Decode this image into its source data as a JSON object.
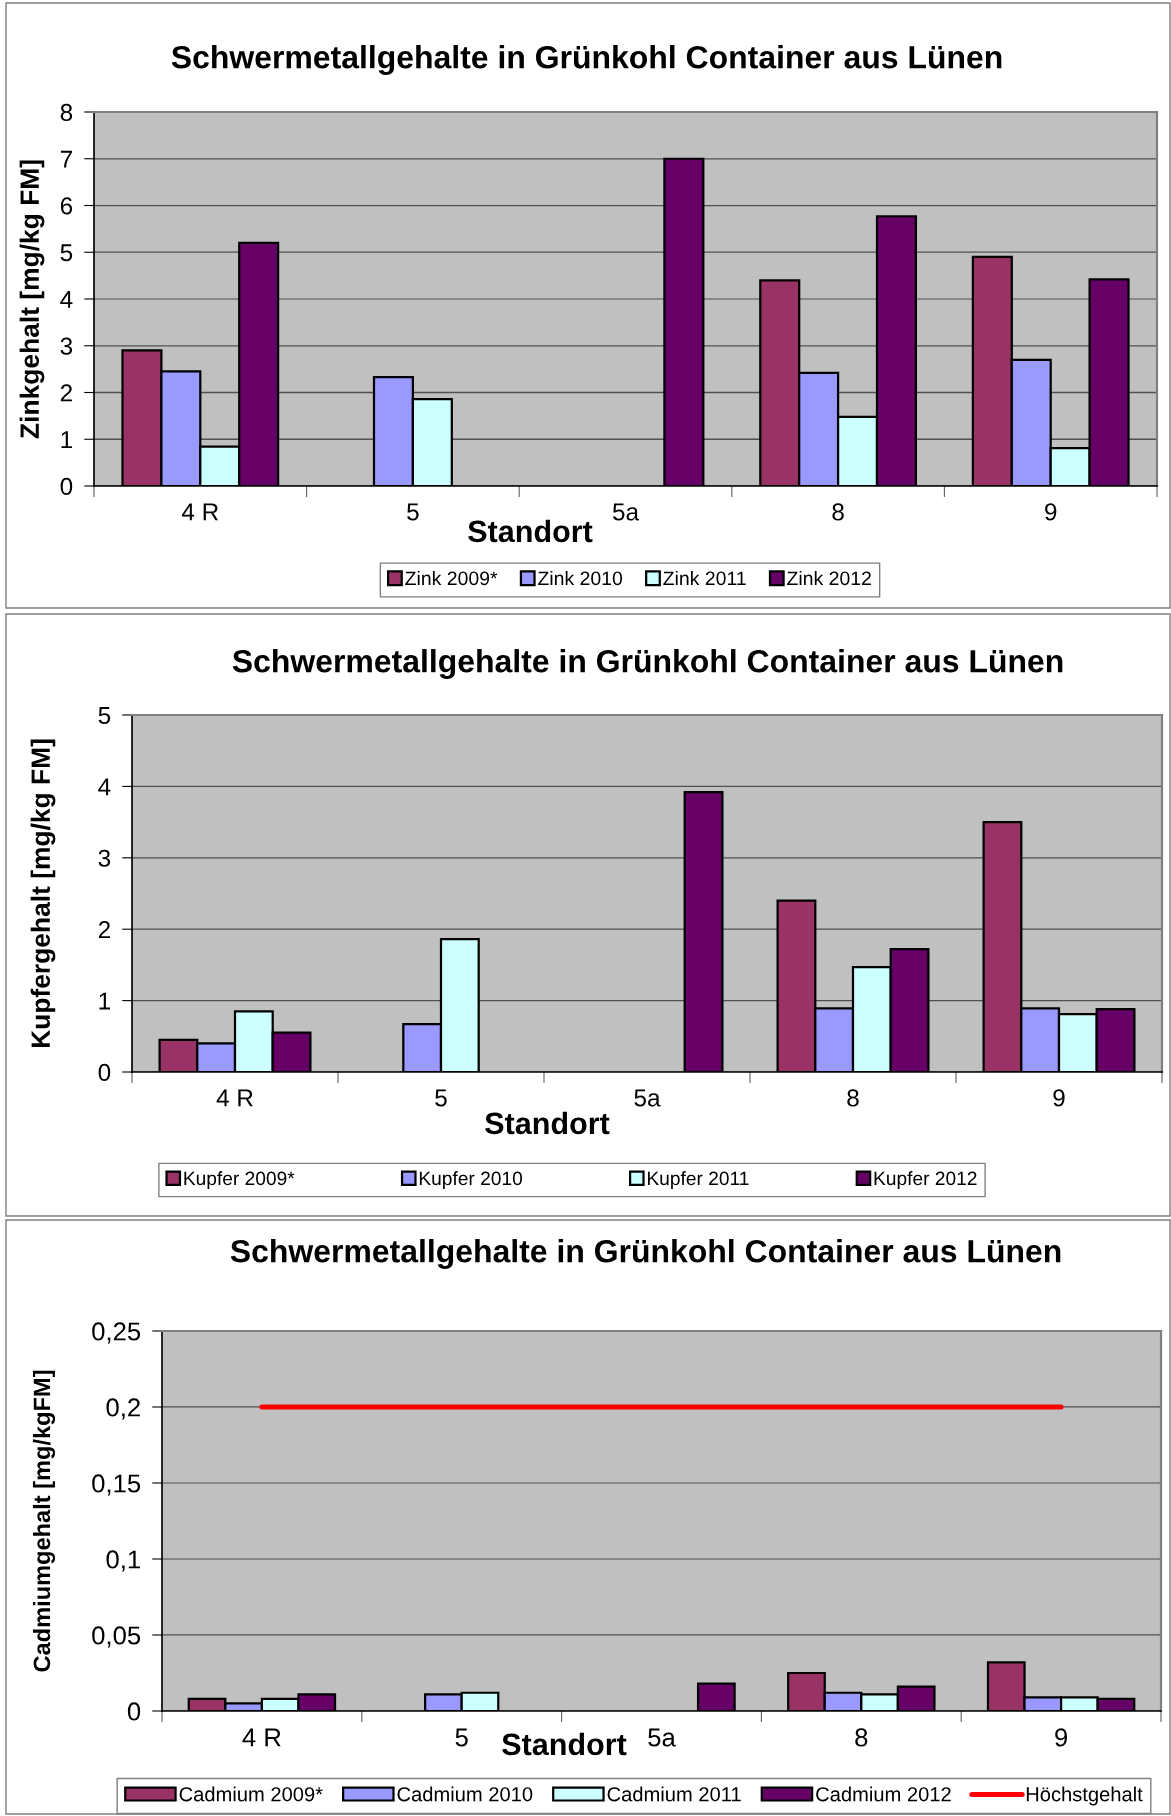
{
  "chart_data": [
    {
      "type": "bar",
      "title": "Schwermetallgehalte in Grünkohl Container aus Lünen",
      "xlabel": "Standort",
      "ylabel": "Zinkgehalt [mg/kg FM]",
      "categories": [
        "4 R",
        "5",
        "5a",
        "8",
        "9"
      ],
      "series": [
        {
          "name": "Zink 2009*",
          "color": "#993366",
          "values": [
            2.9,
            null,
            null,
            4.4,
            4.9
          ]
        },
        {
          "name": "Zink 2010",
          "color": "#9999ff",
          "values": [
            2.45,
            2.33,
            null,
            2.42,
            2.7
          ]
        },
        {
          "name": "Zink 2011",
          "color": "#ccffff",
          "values": [
            0.84,
            1.86,
            null,
            1.48,
            0.81
          ]
        },
        {
          "name": "Zink 2012",
          "color": "#660066",
          "values": [
            5.2,
            null,
            7.0,
            5.77,
            4.42
          ]
        }
      ],
      "ylim": [
        0,
        8
      ],
      "yticks": [
        0,
        1,
        2,
        3,
        4,
        5,
        6,
        7,
        8
      ],
      "grid": "y",
      "legend": "bottom"
    },
    {
      "type": "bar",
      "title": "Schwermetallgehalte in Grünkohl Container aus Lünen",
      "xlabel": "Standort",
      "ylabel": "Kupfergehalt [mg/kg FM]",
      "categories": [
        "4 R",
        "5",
        "5a",
        "8",
        "9"
      ],
      "series": [
        {
          "name": "Kupfer 2009*",
          "color": "#993366",
          "values": [
            0.45,
            null,
            null,
            2.4,
            3.5
          ]
        },
        {
          "name": "Kupfer 2010",
          "color": "#9999ff",
          "values": [
            0.4,
            0.67,
            null,
            0.89,
            0.89
          ]
        },
        {
          "name": "Kupfer 2011",
          "color": "#ccffff",
          "values": [
            0.85,
            1.86,
            null,
            1.47,
            0.81
          ]
        },
        {
          "name": "Kupfer 2012",
          "color": "#660066",
          "values": [
            0.55,
            null,
            3.92,
            1.72,
            0.88
          ]
        }
      ],
      "ylim": [
        0,
        5
      ],
      "yticks": [
        0,
        1,
        2,
        3,
        4,
        5
      ],
      "grid": "y",
      "legend": "bottom"
    },
    {
      "type": "bar",
      "title": "Schwermetallgehalte in Grünkohl Container aus Lünen",
      "xlabel": "Standort",
      "ylabel": "Cadmiumgehalt [mg/kgFM]",
      "categories": [
        "4 R",
        "5",
        "5a",
        "8",
        "9"
      ],
      "series": [
        {
          "name": "Cadmium 2009*",
          "color": "#993366",
          "values": [
            0.008,
            null,
            null,
            0.025,
            0.032
          ]
        },
        {
          "name": "Cadmium 2010",
          "color": "#9999ff",
          "values": [
            0.005,
            0.011,
            null,
            0.012,
            0.009
          ]
        },
        {
          "name": "Cadmium 2011",
          "color": "#ccffff",
          "values": [
            0.008,
            0.012,
            null,
            0.011,
            0.009
          ]
        },
        {
          "name": "Cadmium 2012",
          "color": "#660066",
          "values": [
            0.011,
            null,
            0.018,
            0.016,
            0.008
          ]
        },
        {
          "name": "Höchstgehalt",
          "type": "line",
          "color": "#ff0000",
          "values": [
            0.2,
            0.2,
            0.2,
            0.2,
            0.2
          ]
        }
      ],
      "ylim": [
        0,
        0.25
      ],
      "yticks": [
        0,
        {
          "value": 0.05,
          "label": "0,05"
        },
        {
          "value": 0.1,
          "label": "0,1"
        },
        {
          "value": 0.15,
          "label": "0,15"
        },
        {
          "value": 0.2,
          "label": "0,2"
        },
        {
          "value": 0.25,
          "label": "0,25"
        }
      ],
      "grid": "y",
      "legend": "bottom"
    }
  ]
}
